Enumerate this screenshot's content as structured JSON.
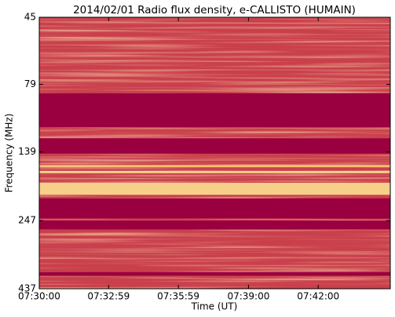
{
  "chart_data": {
    "type": "spectrogram",
    "title": "2014/02/01  Radio flux density, e-CALLISTO (HUMAIN)",
    "x_label": "Time (UT)",
    "y_label": "Frequency (MHz)",
    "xlim": [
      "07:30:00",
      "07:45:06"
    ],
    "xticks": [
      "07:30:00",
      "07:32:59",
      "07:35:59",
      "07:39:00",
      "07:42:00"
    ],
    "ylim": [
      45,
      437
    ],
    "yticks": [
      45,
      79,
      139,
      247,
      437
    ],
    "y_scale": "log",
    "y_inverted": true,
    "background_color": "#c9404c",
    "bands": [
      {
        "range": [
          85,
          113
        ],
        "color": "#9a0040"
      },
      {
        "range": [
          124,
          141
        ],
        "color": "#9a0040"
      },
      {
        "range": [
          155,
          158
        ],
        "color": "#f5c070"
      },
      {
        "range": [
          163,
          166
        ],
        "color": "#f8d890"
      },
      {
        "range": [
          180,
          199
        ],
        "color": "#f6d089"
      },
      {
        "range": [
          205,
          243
        ],
        "color": "#9a0040"
      },
      {
        "range": [
          247,
          266
        ],
        "color": "#9a0040"
      },
      {
        "range": [
          380,
          392
        ],
        "color": "#9a0040"
      }
    ]
  }
}
